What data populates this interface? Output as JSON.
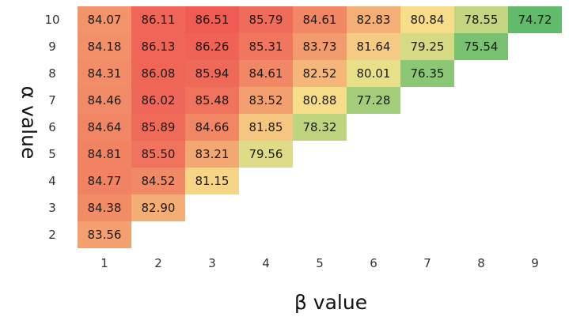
{
  "chart_data": {
    "type": "heatmap",
    "xlabel": "β value",
    "ylabel": "α value",
    "x_categories": [
      "1",
      "2",
      "3",
      "4",
      "5",
      "6",
      "7",
      "8",
      "9"
    ],
    "y_categories": [
      "10",
      "9",
      "8",
      "7",
      "6",
      "5",
      "4",
      "3",
      "2"
    ],
    "rows": [
      {
        "alpha": "10",
        "values": [
          "84.07",
          "86.11",
          "86.51",
          "85.79",
          "84.61",
          "82.83",
          "80.84",
          "78.55",
          "74.72"
        ]
      },
      {
        "alpha": "9",
        "values": [
          "84.18",
          "86.13",
          "86.26",
          "85.31",
          "83.73",
          "81.64",
          "79.25",
          "75.54"
        ]
      },
      {
        "alpha": "8",
        "values": [
          "84.31",
          "86.08",
          "85.94",
          "84.61",
          "82.52",
          "80.01",
          "76.35"
        ]
      },
      {
        "alpha": "7",
        "values": [
          "84.46",
          "86.02",
          "85.48",
          "83.52",
          "80.88",
          "77.28"
        ]
      },
      {
        "alpha": "6",
        "values": [
          "84.64",
          "85.89",
          "84.66",
          "81.85",
          "78.32"
        ]
      },
      {
        "alpha": "5",
        "values": [
          "84.81",
          "85.50",
          "83.21",
          "79.56"
        ]
      },
      {
        "alpha": "4",
        "values": [
          "84.77",
          "84.52",
          "81.15"
        ]
      },
      {
        "alpha": "3",
        "values": [
          "84.38",
          "82.90"
        ]
      },
      {
        "alpha": "2",
        "values": [
          "83.56"
        ]
      }
    ],
    "colorscale": {
      "low": "#5cba6a",
      "mid": "#f7e38c",
      "high": "#ee5a52",
      "domain": [
        74.5,
        86.6
      ]
    },
    "grid": false,
    "legend": "none"
  }
}
